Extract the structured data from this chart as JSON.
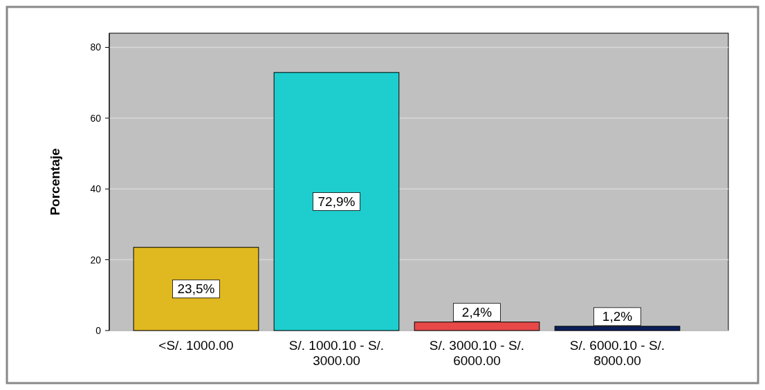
{
  "chart_data": {
    "type": "bar",
    "ylabel": "Porcentaje",
    "categories": [
      "<S/. 1000.00",
      "S/. 1000.10 - S/. 3000.00",
      "S/. 3000.10 - S/. 6000.00",
      "S/. 6000.10 - S/. 8000.00"
    ],
    "values": [
      23.5,
      72.9,
      2.4,
      1.2
    ],
    "colors": [
      "#e0b820",
      "#1ecece",
      "#e84848",
      "#0a1e5a"
    ],
    "value_labels": [
      "23,5%",
      "72,9%",
      "2,4%",
      "1,2%"
    ],
    "ylim": [
      0,
      84
    ],
    "yticks": [
      0,
      20,
      40,
      60,
      80
    ],
    "grid": "y"
  }
}
